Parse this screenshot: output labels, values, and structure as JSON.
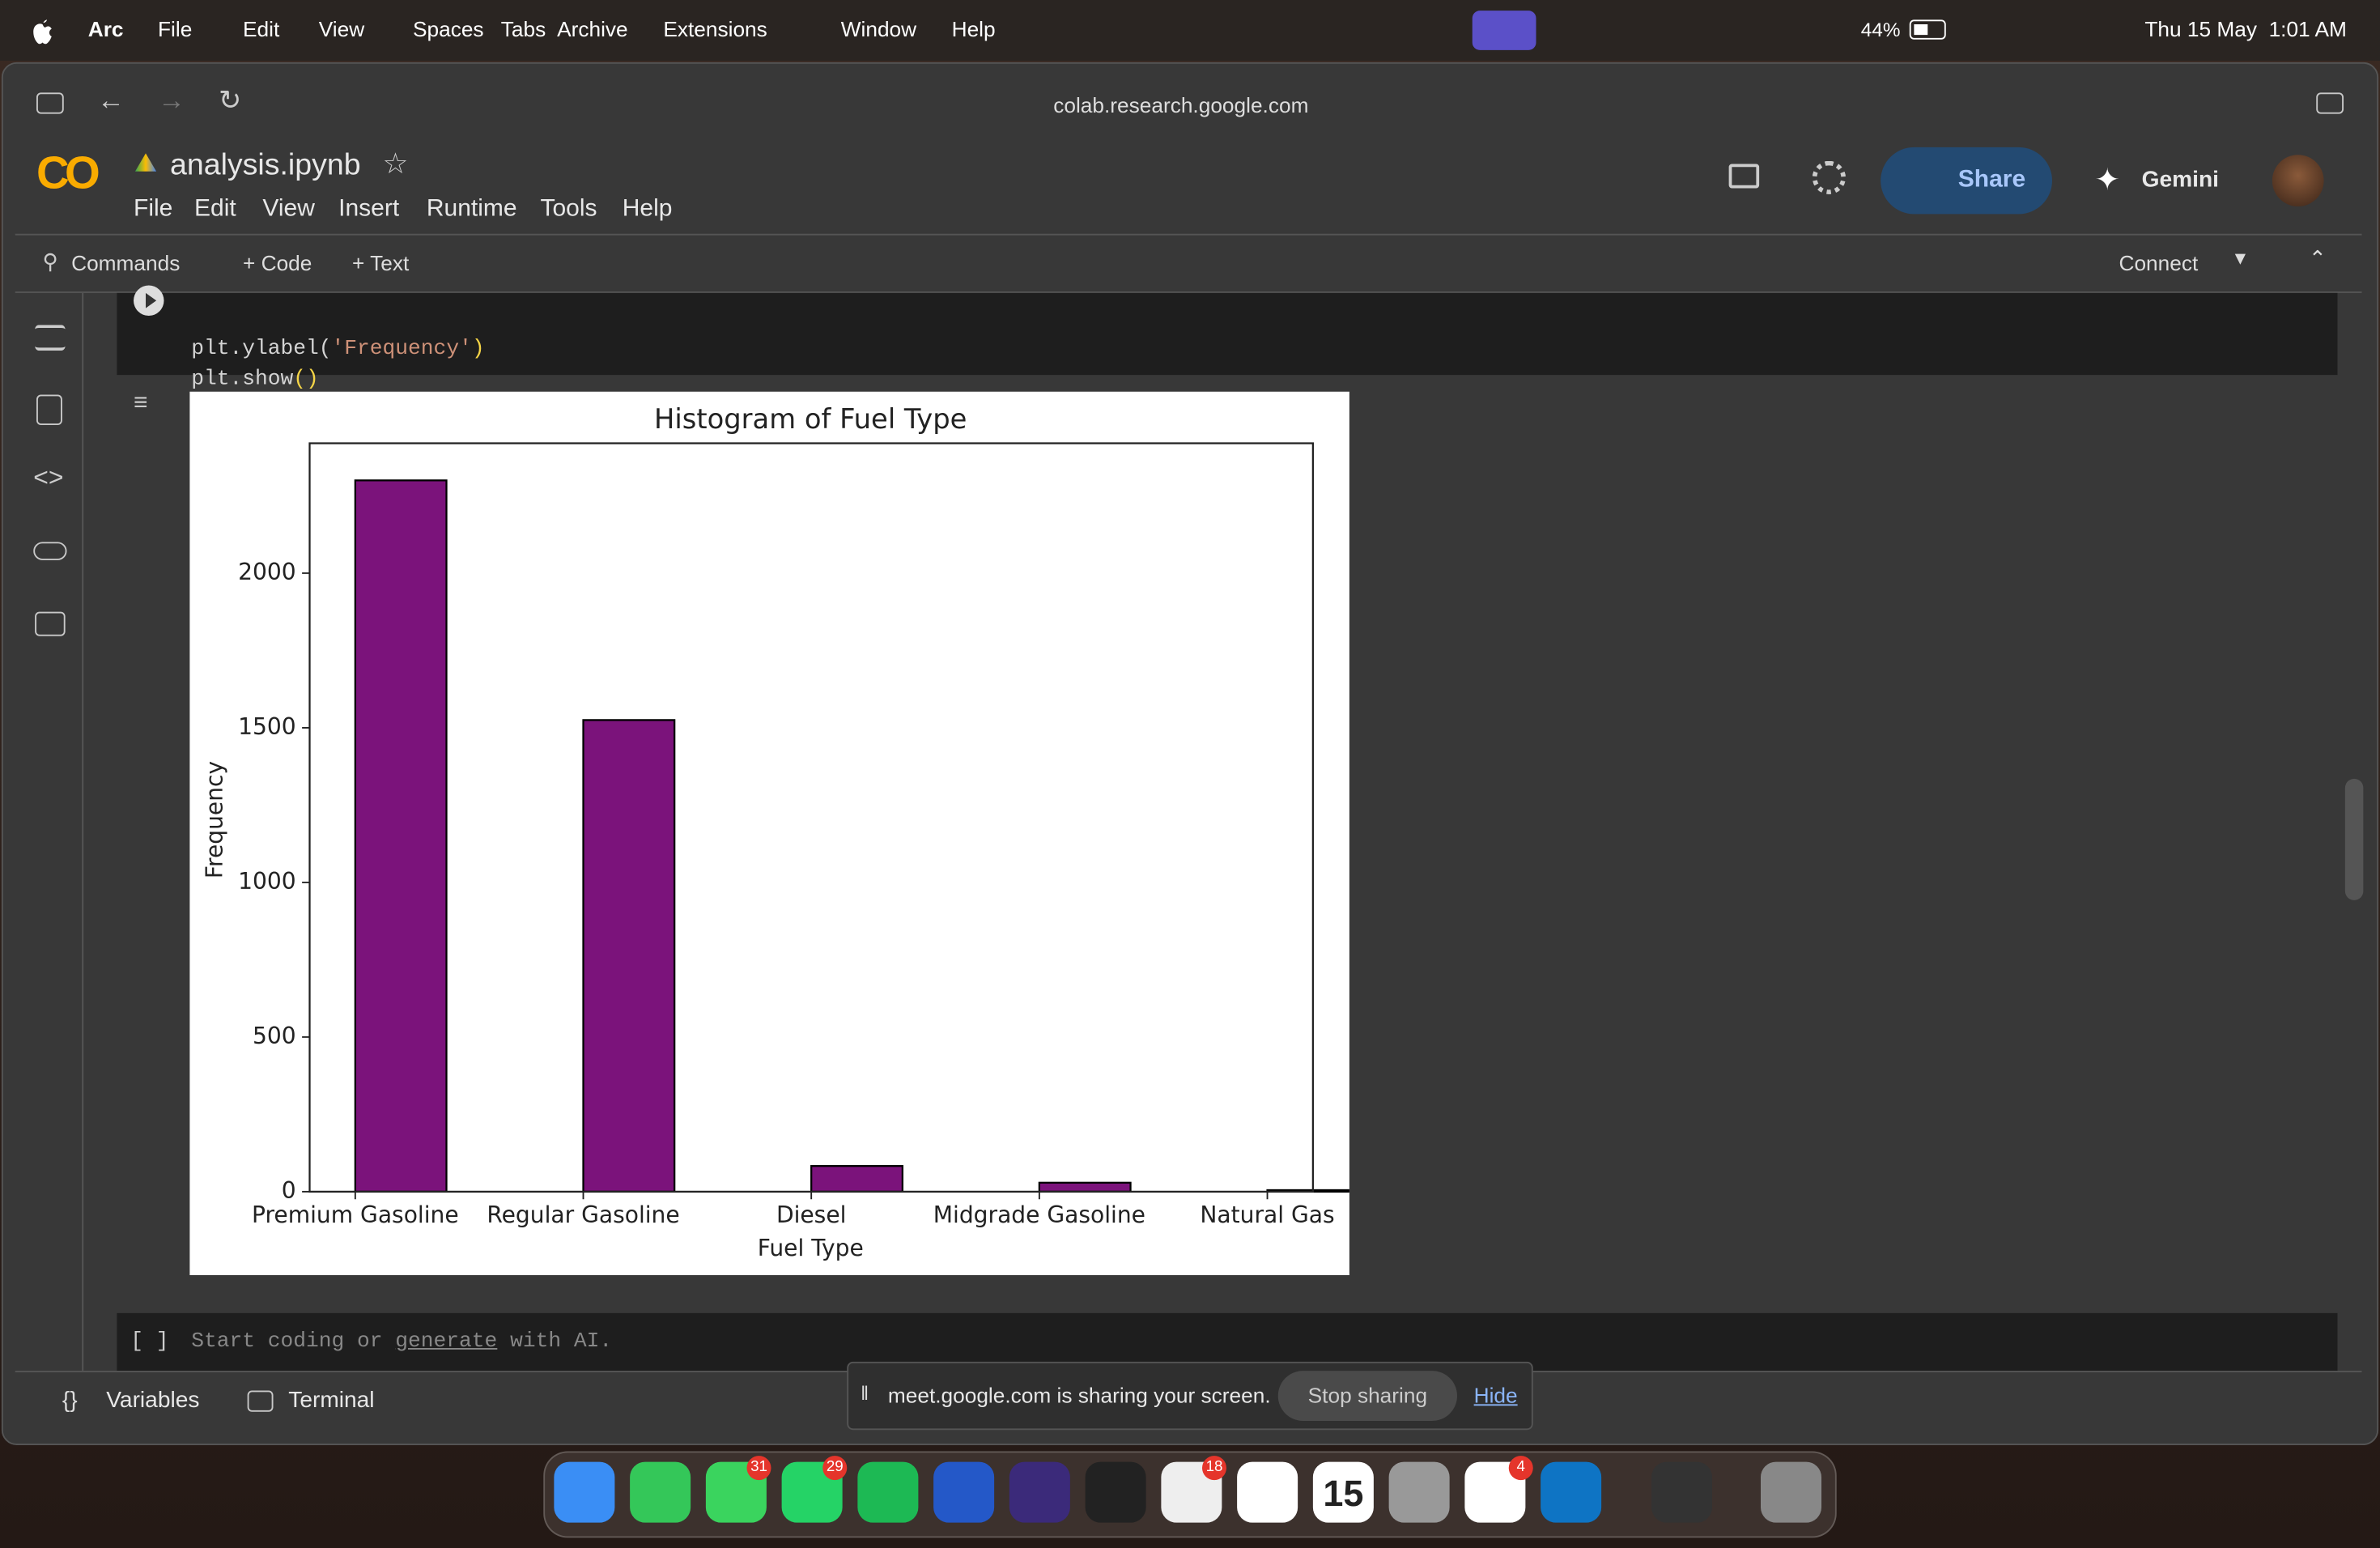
{
  "menubar": {
    "app": "Arc",
    "items": [
      "File",
      "Edit",
      "View",
      "Spaces",
      "Tabs",
      "Archive",
      "Extensions",
      "Window",
      "Help"
    ],
    "battery": "44%",
    "clock": "Thu 15 May  1:01 AM"
  },
  "browser": {
    "url": "colab.research.google.com"
  },
  "notebook": {
    "logo": "CO",
    "title": "analysis.ipynb",
    "menu": [
      "File",
      "Edit",
      "View",
      "Insert",
      "Runtime",
      "Tools",
      "Help"
    ],
    "share": "Share",
    "gemini": "Gemini",
    "toolbar": {
      "commands": "Commands",
      "code": "+ Code",
      "text": "+ Text",
      "connect": "Connect"
    }
  },
  "cell": {
    "lines": [
      [
        "plt.ylabel(",
        "'Frequency'",
        ")"
      ],
      [
        "plt.show",
        "()"
      ]
    ]
  },
  "empty_cell": {
    "bracket": "[ ]",
    "before": "Start coding or ",
    "link": "generate",
    "after": " with AI."
  },
  "bottom_bar": {
    "variables": "Variables",
    "terminal": "Terminal"
  },
  "share_banner": {
    "message": "meet.google.com is sharing your screen.",
    "stop": "Stop sharing",
    "hide": "Hide"
  },
  "dock": {
    "badges": [
      31,
      29,
      18,
      4
    ],
    "calendar_day": 15
  },
  "chart_data": {
    "type": "bar",
    "title": "Histogram of Fuel Type",
    "x_label": "Fuel Type",
    "y_label": "Frequency",
    "categories": [
      "Premium Gasoline",
      "Regular Gasoline",
      "Diesel",
      "Midgrade Gasoline",
      "Natural Gas"
    ],
    "values": [
      2300,
      1525,
      83,
      29,
      5
    ],
    "color": "#7b137b",
    "edgecolor": "#000000",
    "ylim": [
      0,
      2420
    ],
    "yticks": [
      0,
      500,
      1000,
      1500,
      2000
    ]
  }
}
